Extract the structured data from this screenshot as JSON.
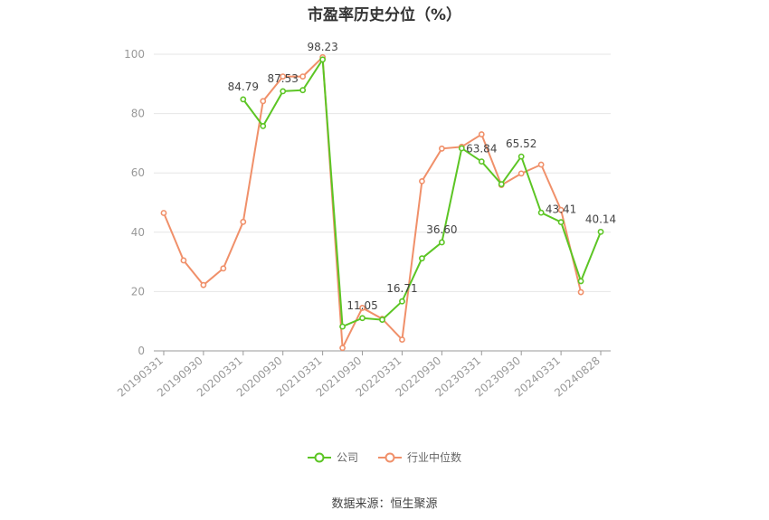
{
  "colors": {
    "company": "#5cc524",
    "industry": "#f0906a",
    "grid": "#e6e6e6",
    "axis": "#999999",
    "label": "#444444"
  },
  "chart_data": {
    "type": "line",
    "title": "市盈率历史分位（%）",
    "xlabel": "",
    "ylabel": "",
    "ylim": [
      0,
      100
    ],
    "yticks": [
      0,
      20,
      40,
      60,
      80,
      100
    ],
    "grid": true,
    "legend_position": "bottom",
    "categories": [
      "20190331",
      "20190630",
      "20190930",
      "20191231",
      "20200331",
      "20200630",
      "20200930",
      "20201231",
      "20210331",
      "20210630",
      "20210930",
      "20211231",
      "20220331",
      "20220630",
      "20220930",
      "20221231",
      "20230331",
      "20230630",
      "20230930",
      "20231231",
      "20240331",
      "20240630",
      "20240828"
    ],
    "xtick_labels": [
      "20190331",
      "20190930",
      "20200331",
      "20200930",
      "20210331",
      "20210930",
      "20220331",
      "20220930",
      "20230331",
      "20230930",
      "20240331",
      "20240828"
    ],
    "xtick_indices": [
      0,
      2,
      4,
      6,
      8,
      10,
      12,
      14,
      16,
      18,
      20,
      22
    ],
    "series": [
      {
        "name": "公司",
        "values": [
          null,
          null,
          null,
          null,
          84.79,
          75.8,
          87.53,
          87.9,
          98.23,
          8.2,
          11.05,
          10.5,
          16.71,
          31.2,
          36.6,
          68.3,
          63.84,
          56.2,
          65.52,
          46.6,
          43.41,
          23.5,
          40.14
        ],
        "labels": [
          null,
          null,
          null,
          null,
          "84.79",
          null,
          "87.53",
          null,
          "98.23",
          null,
          "11.05",
          null,
          "16.71",
          null,
          "36.60",
          null,
          "63.84",
          null,
          "65.52",
          null,
          "43.41",
          null,
          "40.14"
        ]
      },
      {
        "name": "行业中位数",
        "values": [
          46.5,
          30.5,
          22.2,
          27.8,
          43.5,
          84.2,
          92.5,
          92.5,
          99.0,
          1.0,
          14.5,
          10.8,
          3.8,
          57.2,
          68.2,
          68.8,
          73.0,
          55.9,
          59.8,
          62.8,
          47.5,
          19.8,
          null
        ]
      }
    ]
  },
  "legend": {
    "company": "公司",
    "industry": "行业中位数"
  },
  "source": "数据来源：恒生聚源"
}
